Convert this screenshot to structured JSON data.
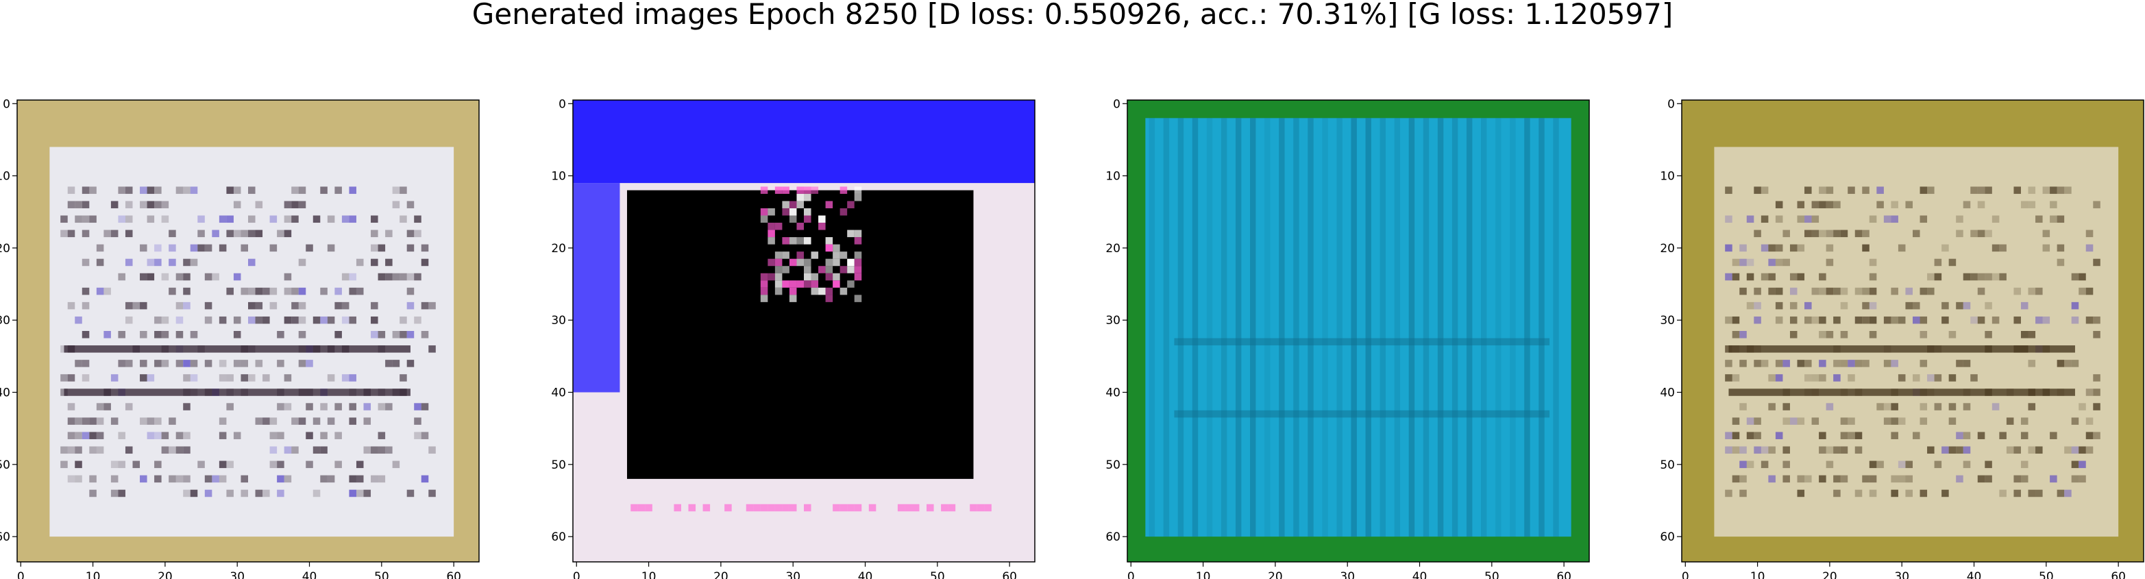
{
  "suptitle": "Generated images Epoch 8250 [D loss: 0.550926, acc.: 70.31%] [G loss: 1.120597]",
  "chart_data": [
    {
      "type": "image",
      "title": "",
      "xlabel": "",
      "ylabel": "",
      "xlim": [
        -0.5,
        63.5
      ],
      "ylim": [
        63.5,
        -0.5
      ],
      "xticks": [
        0,
        10,
        20,
        30,
        40,
        50,
        60
      ],
      "yticks": [
        0,
        10,
        20,
        30,
        40,
        50,
        60
      ],
      "content": "generated image: whitish document-like page with olive/yellow border and faint dark horizontal lines",
      "palette": {
        "bg": "#e9e9ef",
        "border": "#c9b77a",
        "ink": "#3a2b3a",
        "accent": "#5a4cc8"
      }
    },
    {
      "type": "image",
      "title": "",
      "xlabel": "",
      "ylabel": "",
      "xlim": [
        -0.5,
        63.5
      ],
      "ylim": [
        63.5,
        -0.5
      ],
      "xticks": [
        0,
        10,
        20,
        30,
        40,
        50,
        60
      ],
      "yticks": [
        0,
        10,
        20,
        30,
        40,
        50,
        60
      ],
      "content": "generated image: bright blue top band, large black central region, pink/white pixel cluster near top, light pinkish frame",
      "palette": {
        "bg": "#000000",
        "top": "#2a22ff",
        "frame": "#efe4ee",
        "accent": "#ff5ad2"
      }
    },
    {
      "type": "image",
      "title": "",
      "xlabel": "",
      "ylabel": "",
      "xlim": [
        -0.5,
        63.5
      ],
      "ylim": [
        63.5,
        -0.5
      ],
      "xticks": [
        0,
        10,
        20,
        30,
        40,
        50,
        60
      ],
      "yticks": [
        0,
        10,
        20,
        30,
        40,
        50,
        60
      ],
      "content": "generated image: cyan-blue field with vertical striations and green border",
      "palette": {
        "bg": "#1aa6cf",
        "border": "#1c8a2a",
        "stripe": "#0f6f8f",
        "accent": "#27c4e8"
      }
    },
    {
      "type": "image",
      "title": "",
      "xlabel": "",
      "ylabel": "",
      "xlim": [
        -0.5,
        63.5
      ],
      "ylim": [
        63.5,
        -0.5
      ],
      "xticks": [
        0,
        10,
        20,
        30,
        40,
        50,
        60
      ],
      "yticks": [
        0,
        10,
        20,
        30,
        40,
        50,
        60
      ],
      "content": "generated image: beige/olive document-like page with darker olive border and dark horizontal lines",
      "palette": {
        "bg": "#d8cfae",
        "border": "#a99a3e",
        "ink": "#4a3a20",
        "accent": "#6a58c0"
      }
    }
  ]
}
